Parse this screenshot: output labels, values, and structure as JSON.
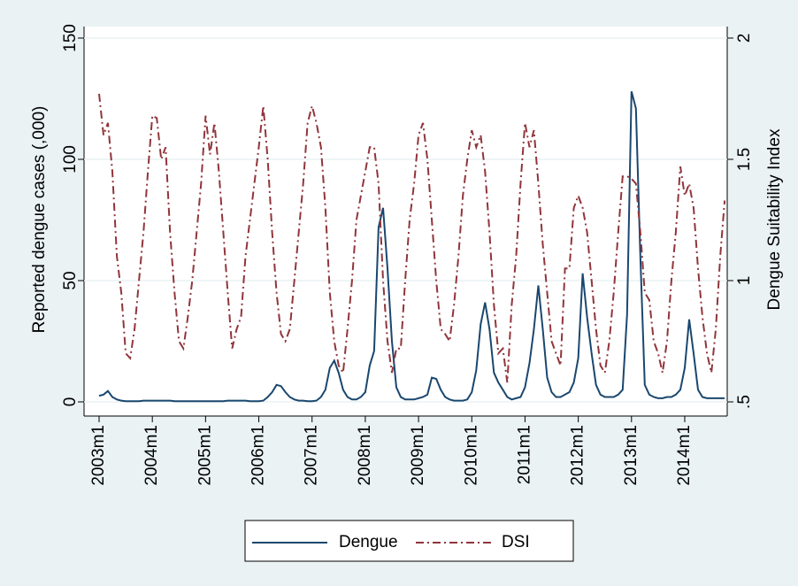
{
  "chart_data": {
    "type": "line",
    "y_label": "Reported dengue cases (,000)",
    "y2_label": "Dengue Suitability Index",
    "categories": [
      "2003m1",
      null,
      null,
      null,
      null,
      null,
      null,
      null,
      null,
      null,
      null,
      null,
      "2004m1",
      null,
      null,
      null,
      null,
      null,
      null,
      null,
      null,
      null,
      null,
      null,
      "2005m1",
      null,
      null,
      null,
      null,
      null,
      null,
      null,
      null,
      null,
      null,
      null,
      "2006m1",
      null,
      null,
      null,
      null,
      null,
      null,
      null,
      null,
      null,
      null,
      null,
      "2007m1",
      null,
      null,
      null,
      null,
      null,
      null,
      null,
      null,
      null,
      null,
      null,
      "2008m1",
      null,
      null,
      null,
      null,
      null,
      null,
      null,
      null,
      null,
      null,
      null,
      "2009m1",
      null,
      null,
      null,
      null,
      null,
      null,
      null,
      null,
      null,
      null,
      null,
      "2010m1",
      null,
      null,
      null,
      null,
      null,
      null,
      null,
      null,
      null,
      null,
      null,
      "2011m1",
      null,
      null,
      null,
      null,
      null,
      null,
      null,
      null,
      null,
      null,
      null,
      "2012m1",
      null,
      null,
      null,
      null,
      null,
      null,
      null,
      null,
      null,
      null,
      null,
      "2013m1",
      null,
      null,
      null,
      null,
      null,
      null,
      null,
      null,
      null,
      null,
      null,
      "2014m1",
      null,
      null,
      null,
      null,
      null,
      null,
      null,
      null,
      null
    ],
    "series": [
      {
        "name": "Dengue",
        "color": "#1a476f",
        "axis": "y",
        "values": [
          2.5,
          3,
          4.5,
          2,
          1,
          0.5,
          0.3,
          0.3,
          0.3,
          0.3,
          0.5,
          0.5,
          0.5,
          0.5,
          0.5,
          0.5,
          0.5,
          0.3,
          0.3,
          0.3,
          0.3,
          0.3,
          0.3,
          0.3,
          0.3,
          0.3,
          0.3,
          0.3,
          0.3,
          0.5,
          0.5,
          0.5,
          0.5,
          0.5,
          0.3,
          0.3,
          0.3,
          0.5,
          2,
          4,
          7,
          6.5,
          4,
          2,
          1,
          0.5,
          0.5,
          0.3,
          0.3,
          0.5,
          2,
          5,
          14,
          17,
          12,
          5,
          2,
          1,
          1,
          2,
          4,
          15,
          21,
          72,
          80,
          55,
          25,
          6,
          2,
          1,
          1,
          1,
          1.5,
          2,
          3,
          10,
          9.5,
          5,
          2,
          1,
          0.5,
          0.5,
          0.5,
          1,
          4,
          13,
          32,
          41,
          30,
          12,
          8,
          5,
          2,
          1,
          1.5,
          2,
          6,
          16,
          30,
          48,
          30,
          10,
          4,
          2,
          2,
          3,
          4,
          8,
          18,
          53,
          35,
          20,
          7,
          3,
          2,
          2,
          2,
          3,
          5,
          36,
          128,
          121,
          60,
          7,
          3,
          2,
          1.5,
          1.5,
          2,
          2,
          3,
          5,
          14,
          34,
          20,
          5,
          2,
          1.5,
          1.5,
          1.5,
          1.5,
          1.5
        ]
      },
      {
        "name": "DSI",
        "color": "#90353b",
        "axis": "y2",
        "values": [
          1.77,
          1.6,
          1.65,
          1.45,
          1.1,
          0.95,
          0.7,
          0.68,
          0.8,
          1.0,
          1.2,
          1.45,
          1.68,
          1.67,
          1.5,
          1.55,
          1.2,
          0.95,
          0.75,
          0.72,
          0.85,
          1.0,
          1.2,
          1.4,
          1.68,
          1.52,
          1.65,
          1.45,
          1.2,
          0.95,
          0.72,
          0.8,
          0.85,
          1.1,
          1.25,
          1.4,
          1.55,
          1.72,
          1.5,
          1.2,
          0.95,
          0.78,
          0.75,
          0.8,
          1.0,
          1.2,
          1.4,
          1.65,
          1.72,
          1.65,
          1.55,
          1.3,
          0.95,
          0.75,
          0.65,
          0.62,
          0.8,
          1.0,
          1.25,
          1.35,
          1.45,
          1.55,
          1.55,
          1.4,
          1.0,
          0.75,
          0.62,
          0.72,
          0.72,
          1.0,
          1.25,
          1.4,
          1.6,
          1.65,
          1.5,
          1.25,
          1.0,
          0.8,
          0.78,
          0.75,
          0.9,
          1.1,
          1.35,
          1.5,
          1.62,
          1.55,
          1.6,
          1.45,
          1.2,
          0.9,
          0.7,
          0.72,
          0.58,
          0.9,
          1.1,
          1.4,
          1.65,
          1.55,
          1.62,
          1.4,
          1.15,
          0.95,
          0.75,
          0.7,
          0.65,
          1.05,
          1.05,
          1.3,
          1.35,
          1.3,
          1.2,
          1.0,
          0.8,
          0.65,
          0.62,
          0.75,
          0.95,
          1.2,
          1.43,
          1.43,
          1.42,
          1.4,
          1.2,
          0.95,
          0.92,
          0.75,
          0.7,
          0.62,
          0.75,
          1.0,
          1.2,
          1.47,
          1.35,
          1.4,
          1.3,
          1.05,
          0.85,
          0.7,
          0.62,
          0.8,
          1.1,
          1.33
        ]
      }
    ],
    "ylim": [
      0,
      150
    ],
    "yticks": [
      0,
      50,
      100,
      150
    ],
    "y2lim": [
      0.5,
      2
    ],
    "y2ticks": [
      {
        "value": 0.5,
        "label": ".5"
      },
      1,
      1.5,
      2
    ],
    "grid": true,
    "legend": "bottom"
  }
}
